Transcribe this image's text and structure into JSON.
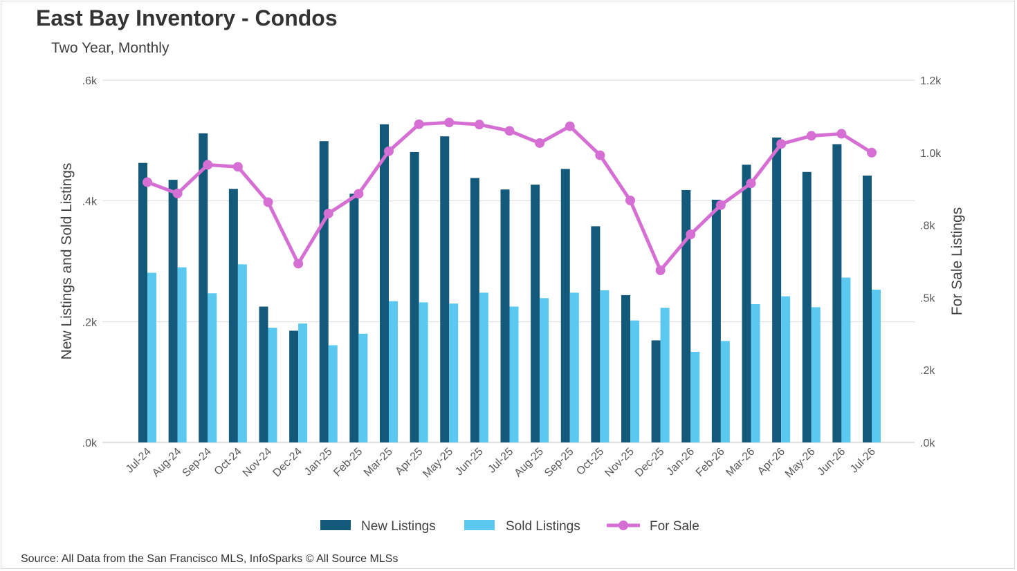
{
  "title": "East Bay Inventory - Condos",
  "subtitle": "Two Year, Monthly",
  "source": "Source: All Data from the San Francisco MLS, InfoSparks © All Source MLSs",
  "colors": {
    "new_listings": "#13597a",
    "sold_listings": "#5bc8f0",
    "for_sale": "#d56fd3",
    "grid": "#d9d9d9",
    "text": "#595959"
  },
  "chart_data": {
    "type": "bar",
    "categories": [
      "Jul-24",
      "Aug-24",
      "Sep-24",
      "Oct-24",
      "Nov-24",
      "Dec-24",
      "Jan-25",
      "Feb-25",
      "Mar-25",
      "Apr-25",
      "May-25",
      "Jun-25",
      "Jul-25",
      "Aug-25",
      "Sep-25",
      "Oct-25",
      "Nov-25",
      "Dec-25",
      "Jan-26",
      "Feb-26",
      "Mar-26",
      "Apr-26",
      "May-26",
      "Jun-26",
      "Jul-26"
    ],
    "series": [
      {
        "name": "New Listings",
        "type": "bar",
        "axis": "left",
        "values": [
          463,
          435,
          512,
          420,
          225,
          185,
          499,
          412,
          527,
          481,
          507,
          438,
          419,
          427,
          453,
          358,
          244,
          169,
          418,
          402,
          460,
          505,
          448,
          494,
          442
        ]
      },
      {
        "name": "Sold Listings",
        "type": "bar",
        "axis": "left",
        "values": [
          281,
          290,
          247,
          295,
          190,
          197,
          161,
          180,
          234,
          232,
          230,
          248,
          225,
          239,
          248,
          252,
          202,
          223,
          150,
          168,
          229,
          242,
          224,
          273,
          253
        ]
      },
      {
        "name": "For Sale",
        "type": "line",
        "axis": "right",
        "values": [
          898,
          859,
          958,
          951,
          829,
          617,
          790,
          858,
          1005,
          1098,
          1104,
          1097,
          1075,
          1033,
          1091,
          991,
          835,
          594,
          718,
          819,
          894,
          1030,
          1058,
          1065,
          1000
        ]
      }
    ],
    "ylabel_left": "New Listings and Sold Listings",
    "ylabel_right": "For Sale Listings",
    "ylim_left": [
      0,
      600
    ],
    "ylim_right": [
      0,
      1250
    ],
    "yticks_left": [
      {
        "v": 0,
        "label": ".0k"
      },
      {
        "v": 200,
        "label": ".2k"
      },
      {
        "v": 400,
        "label": ".4k"
      },
      {
        "v": 600,
        "label": ".6k"
      }
    ],
    "yticks_right": [
      {
        "v": 0,
        "label": ".0k"
      },
      {
        "v": 250,
        "label": ".2k"
      },
      {
        "v": 500,
        "label": ".5k"
      },
      {
        "v": 750,
        "label": ".8k"
      },
      {
        "v": 1000,
        "label": "1.0k"
      },
      {
        "v": 1250,
        "label": "1.2k"
      }
    ],
    "grid": true,
    "legend_position": "bottom"
  }
}
